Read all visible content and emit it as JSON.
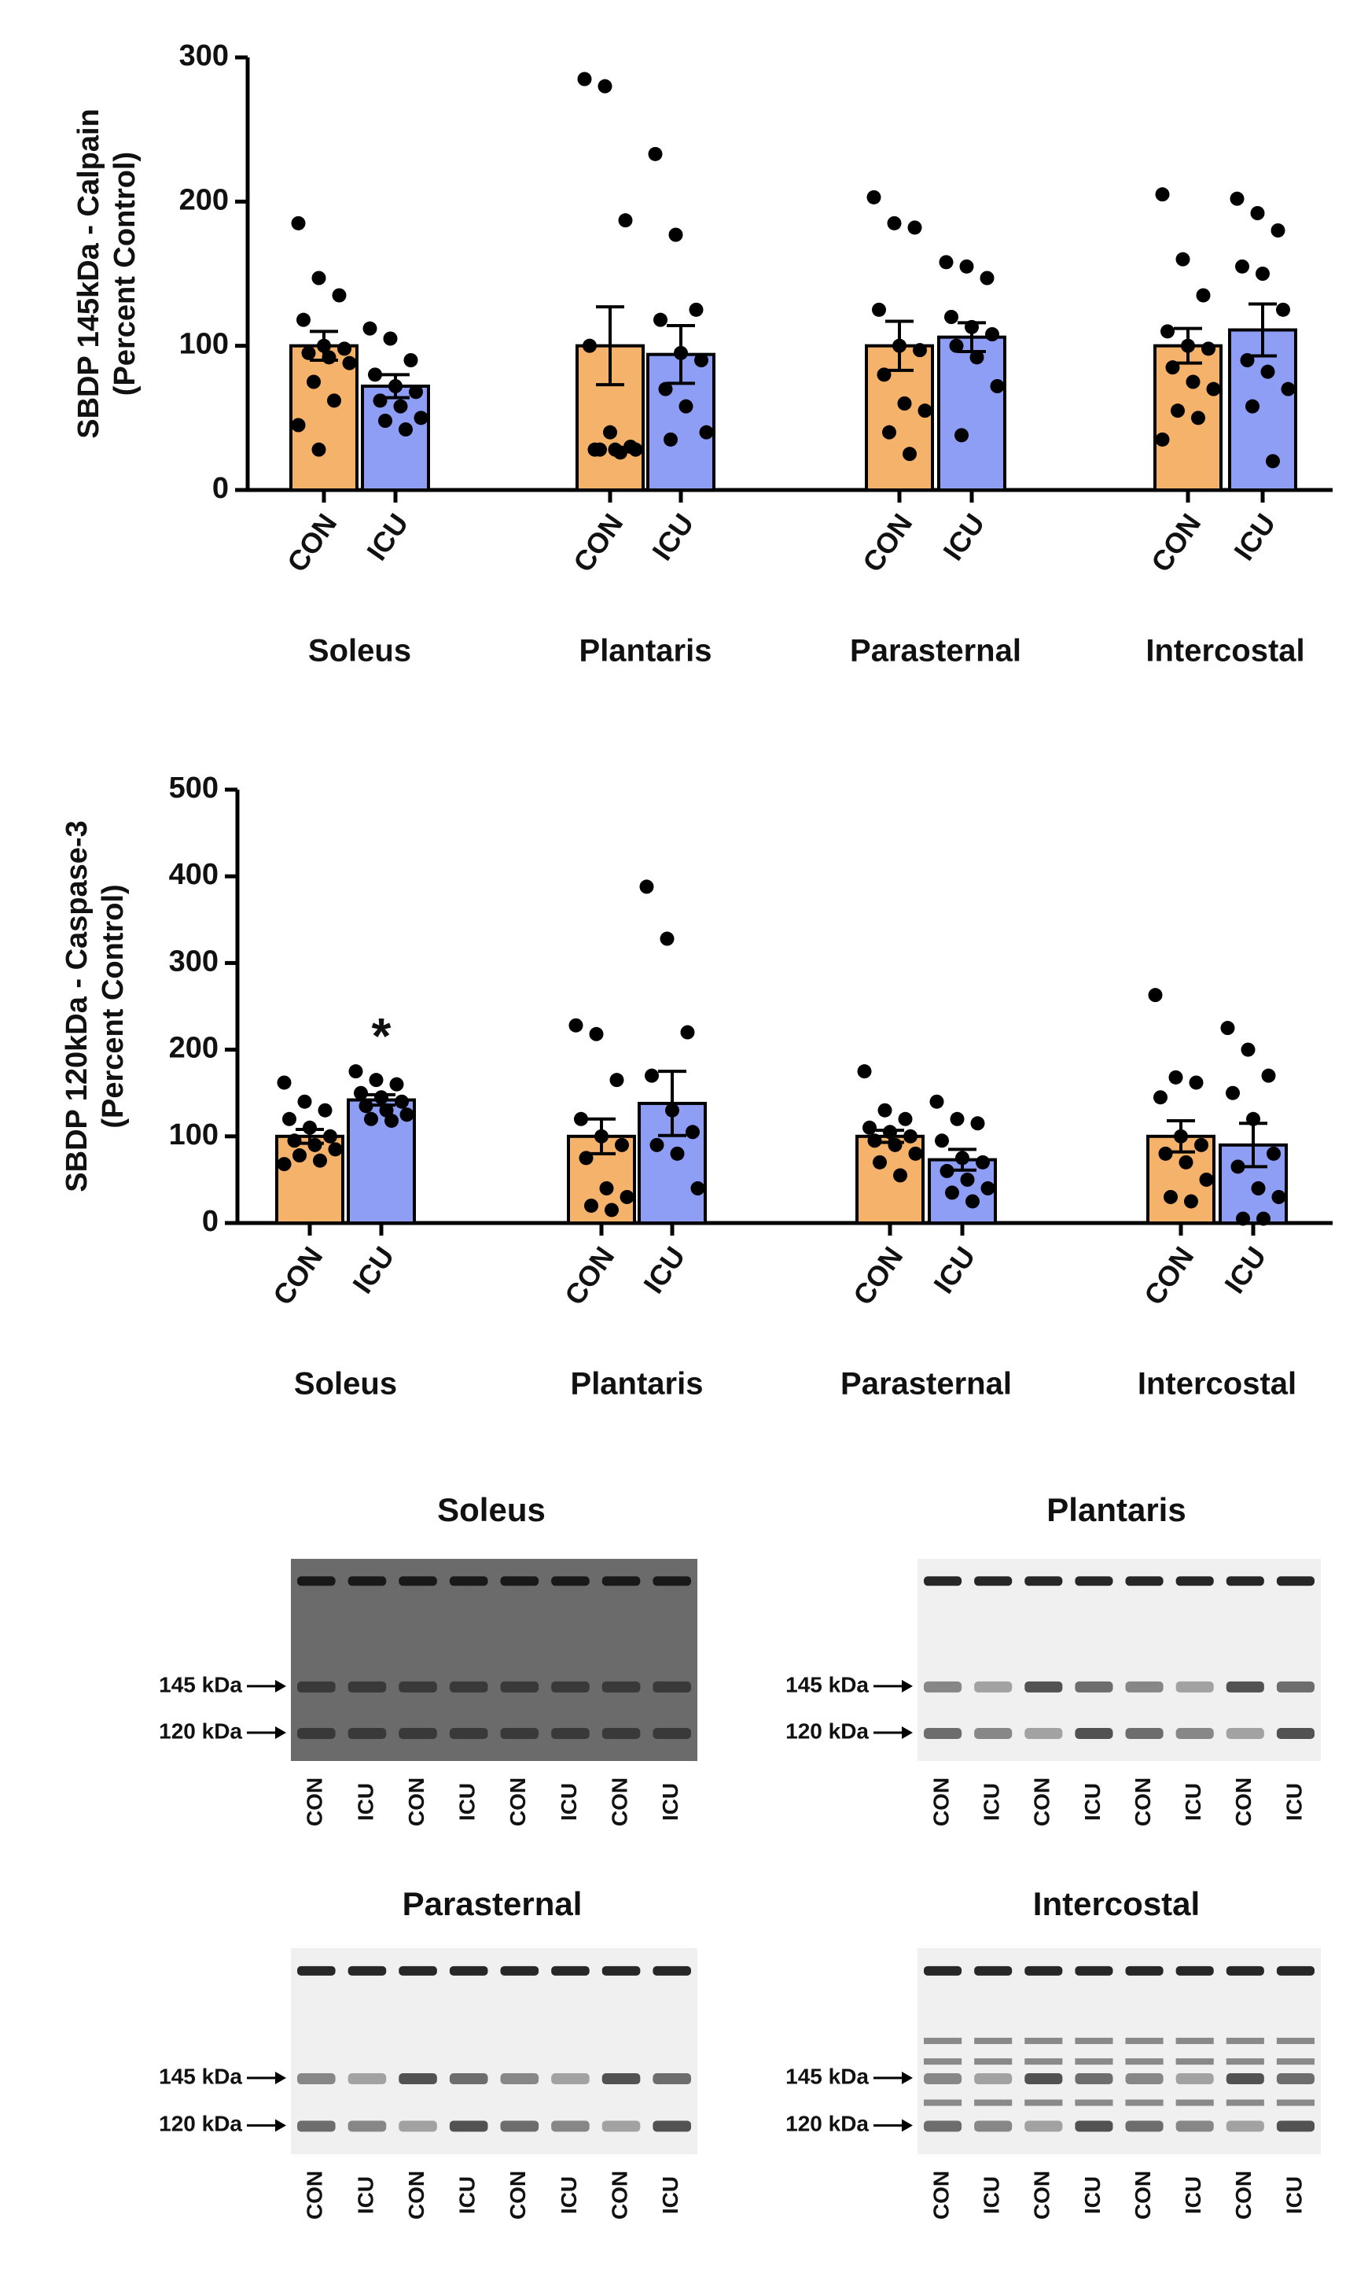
{
  "chart_data": [
    {
      "type": "bar",
      "ylabel": [
        "SBDP 145kDa - Calpain",
        "(Percent Control)"
      ],
      "categories": [
        "Soleus",
        "Plantaris",
        "Parasternal",
        "Intercostal"
      ],
      "ylim": [
        0,
        300
      ],
      "yticks": [
        0,
        100,
        200,
        300
      ],
      "series": [
        {
          "name": "CON",
          "color": "#f5b26b",
          "values": [
            100,
            100,
            100,
            100
          ],
          "errors": [
            10,
            27,
            17,
            12
          ],
          "points": [
            [
              185,
              147,
              135,
              118,
              100,
              98,
              95,
              92,
              88,
              75,
              62,
              45,
              28
            ],
            [
              285,
              280,
              187,
              100,
              40,
              30,
              28,
              28,
              28,
              28,
              26
            ],
            [
              203,
              185,
              182,
              125,
              100,
              97,
              80,
              60,
              55,
              40,
              25
            ],
            [
              205,
              160,
              135,
              110,
              100,
              98,
              85,
              75,
              70,
              55,
              50,
              35
            ]
          ]
        },
        {
          "name": "ICU",
          "color": "#8f9ef5",
          "values": [
            72,
            94,
            106,
            111
          ],
          "errors": [
            8,
            20,
            10,
            18
          ],
          "points": [
            [
              112,
              105,
              90,
              80,
              72,
              68,
              62,
              58,
              50,
              48,
              42
            ],
            [
              233,
              177,
              125,
              118,
              95,
              90,
              70,
              58,
              40,
              35
            ],
            [
              158,
              155,
              147,
              120,
              113,
              108,
              100,
              92,
              72,
              38
            ],
            [
              202,
              192,
              180,
              155,
              150,
              125,
              90,
              82,
              70,
              58,
              20
            ]
          ]
        }
      ]
    },
    {
      "type": "bar",
      "ylabel": [
        "SBDP 120kDa - Caspase-3",
        "(Percent Control)"
      ],
      "categories": [
        "Soleus",
        "Plantaris",
        "Parasternal",
        "Intercostal"
      ],
      "ylim": [
        0,
        500
      ],
      "yticks": [
        0,
        100,
        200,
        300,
        400,
        500
      ],
      "annotation": "*",
      "series": [
        {
          "name": "CON",
          "color": "#f5b26b",
          "values": [
            100,
            100,
            100,
            100
          ],
          "errors": [
            8,
            20,
            7,
            18
          ],
          "points": [
            [
              162,
              140,
              130,
              120,
              110,
              100,
              95,
              90,
              85,
              78,
              72,
              68
            ],
            [
              228,
              218,
              165,
              120,
              100,
              90,
              75,
              40,
              30,
              20,
              15
            ],
            [
              175,
              130,
              120,
              110,
              105,
              100,
              95,
              90,
              80,
              70,
              55
            ],
            [
              263,
              168,
              162,
              145,
              100,
              90,
              80,
              70,
              50,
              30,
              25
            ]
          ]
        },
        {
          "name": "ICU",
          "color": "#8f9ef5",
          "values": [
            142,
            138,
            73,
            90
          ],
          "errors": [
            6,
            37,
            12,
            25
          ],
          "points": [
            [
              175,
              165,
              160,
              150,
              145,
              140,
              135,
              130,
              125,
              120,
              118
            ],
            [
              388,
              328,
              220,
              170,
              130,
              105,
              90,
              80,
              40
            ],
            [
              140,
              120,
              115,
              95,
              75,
              70,
              60,
              50,
              40,
              35,
              25
            ],
            [
              225,
              200,
              170,
              150,
              120,
              80,
              65,
              40,
              30,
              5,
              5
            ]
          ]
        }
      ]
    }
  ],
  "blots": [
    {
      "title": "Soleus",
      "markers": [
        "145 kDa",
        "120 kDa"
      ],
      "lanes": [
        "CON",
        "ICU",
        "CON",
        "ICU",
        "CON",
        "ICU",
        "CON",
        "ICU"
      ]
    },
    {
      "title": "Plantaris",
      "markers": [
        "145 kDa",
        "120 kDa"
      ],
      "lanes": [
        "CON",
        "ICU",
        "CON",
        "ICU",
        "CON",
        "ICU",
        "CON",
        "ICU"
      ]
    },
    {
      "title": "Parasternal",
      "markers": [
        "145 kDa",
        "120 kDa"
      ],
      "lanes": [
        "CON",
        "ICU",
        "CON",
        "ICU",
        "CON",
        "ICU",
        "CON",
        "ICU"
      ]
    },
    {
      "title": "Intercostal",
      "markers": [
        "145 kDa",
        "120 kDa"
      ],
      "lanes": [
        "CON",
        "ICU",
        "CON",
        "ICU",
        "CON",
        "ICU",
        "CON",
        "ICU"
      ]
    }
  ]
}
